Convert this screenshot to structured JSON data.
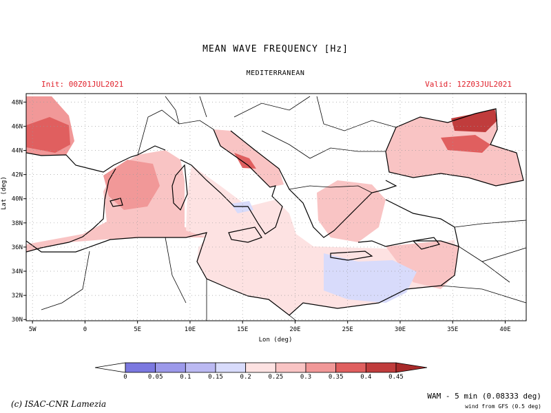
{
  "title": "MEAN WAVE FREQUENCY [Hz]",
  "region": "MEDITERRANEAN",
  "init": "Init: 00Z01JUL2021",
  "valid": "Valid: 12Z03JUL2021",
  "axes": {
    "xlabel": "Lon (deg)",
    "ylabel": "Lat (deg)",
    "lon_ticks": [
      "5W",
      "0",
      "5E",
      "10E",
      "15E",
      "20E",
      "25E",
      "30E",
      "35E",
      "40E"
    ],
    "lat_ticks": [
      "30N",
      "32N",
      "34N",
      "36N",
      "38N",
      "40N",
      "42N",
      "44N",
      "46N",
      "48N"
    ],
    "lon_range": [
      -5.6,
      42
    ],
    "lat_range": [
      29.9,
      48.7
    ]
  },
  "colorbar": {
    "labels": [
      "0",
      "0.05",
      "0.1",
      "0.15",
      "0.2",
      "0.25",
      "0.3",
      "0.35",
      "0.4",
      "0.45"
    ],
    "colors": [
      "#7b78e0",
      "#9c99ea",
      "#bbb9f2",
      "#d8dbfb",
      "#fde2e2",
      "#f9c4c4",
      "#f19898",
      "#e05f5f",
      "#c03c3c"
    ],
    "under_color": "#ffffff",
    "over_color": "#a82a2a"
  },
  "credit": "(c) ISAC-CNR Lamezia",
  "model": "WAM - 5 min (0.08333 deg)",
  "wind": "wind from GFS (0.5 deg)"
}
